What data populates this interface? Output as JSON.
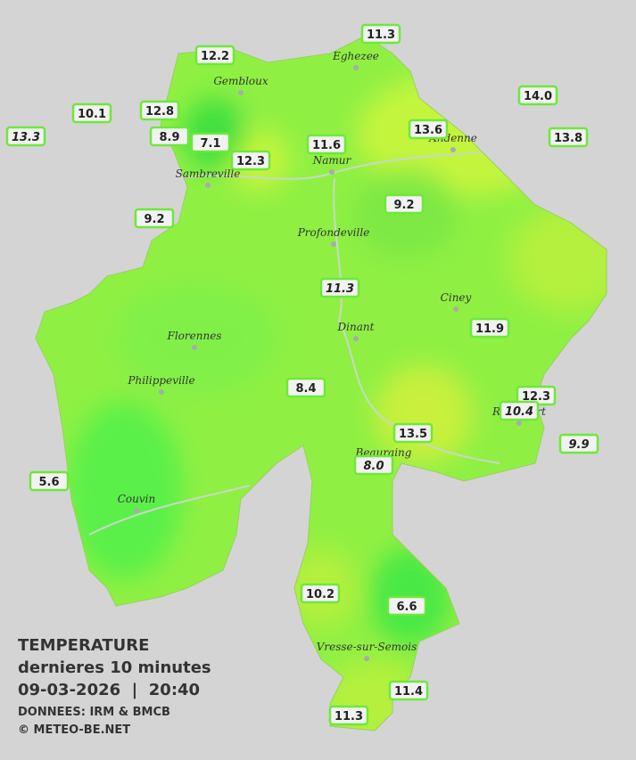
{
  "map": {
    "stations": [
      {
        "label": "12.2"
      },
      {
        "label": "11.3"
      },
      {
        "label": "14.0"
      },
      {
        "label": "10.1"
      },
      {
        "label": "12.8"
      },
      {
        "label": "13.3",
        "italic": true
      },
      {
        "label": "8.9"
      },
      {
        "label": "7.1"
      },
      {
        "label": "11.6"
      },
      {
        "label": "13.6"
      },
      {
        "label": "13.8"
      },
      {
        "label": "12.3"
      },
      {
        "label": "9.2"
      },
      {
        "label": "9.2"
      },
      {
        "label": "11.3",
        "italic": true
      },
      {
        "label": "11.9"
      },
      {
        "label": "8.4"
      },
      {
        "label": "12.3"
      },
      {
        "label": "10.4",
        "italic": true
      },
      {
        "label": "13.5"
      },
      {
        "label": "9.9",
        "italic": true
      },
      {
        "label": "8.0",
        "italic": true
      },
      {
        "label": "5.6"
      },
      {
        "label": "10.2"
      },
      {
        "label": "6.6"
      },
      {
        "label": "11.4"
      },
      {
        "label": "11.3"
      }
    ],
    "towns": [
      "Eghezee",
      "Gembloux",
      "Andenne",
      "Namur",
      "Sambreville",
      "Profondeville",
      "Ciney",
      "Dinant",
      "Florennes",
      "Philippeville",
      "Rochefort",
      "Beauraing",
      "Couvin",
      "Vresse-sur-Semois"
    ],
    "legend": {
      "title": "TEMPERATURE",
      "subtitle": "dernieres 10 minutes",
      "datetime": "09-03-2026  |  20:40",
      "source": "DONNEES: IRM & BMCB",
      "copyright": "© METEO-BE.NET"
    }
  }
}
